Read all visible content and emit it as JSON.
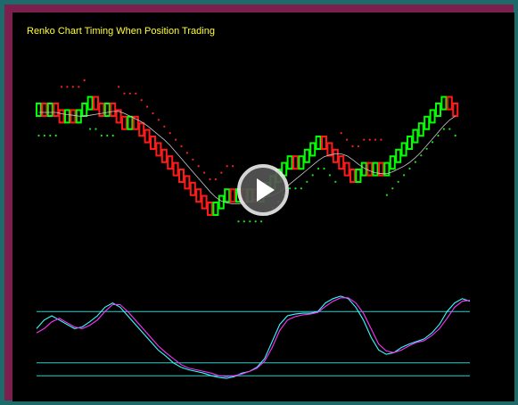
{
  "chart_data": [
    {
      "type": "renko",
      "title": "Renko Chart Timing When Position Trading",
      "bricks": [
        1,
        -1,
        1,
        -1,
        -1,
        1,
        -1,
        1,
        1,
        1,
        -1,
        -1,
        1,
        -1,
        -1,
        -1,
        1,
        -1,
        -1,
        -1,
        -1,
        -1,
        -1,
        -1,
        -1,
        -1,
        -1,
        -1,
        -1,
        -1,
        -1,
        1,
        1,
        1,
        -1,
        1,
        -1,
        1,
        -1,
        1,
        1,
        1,
        1,
        1,
        1,
        -1,
        1,
        1,
        1,
        1,
        -1,
        -1,
        -1,
        -1,
        -1,
        -1,
        1,
        1,
        -1,
        1,
        -1,
        1,
        1,
        1,
        1,
        1,
        1,
        1,
        1,
        1,
        1,
        1,
        -1,
        -1
      ],
      "overlays": [
        {
          "name": "moving average",
          "color": "#cccccc"
        },
        {
          "name": "upper stop dots",
          "color": "#ff2020"
        },
        {
          "name": "lower stop dots",
          "color": "#20e020"
        }
      ],
      "colors": {
        "up": "#00ff00",
        "down": "#ff1a1a",
        "background": "#000000"
      }
    },
    {
      "type": "line",
      "title": "",
      "levels": [
        80,
        20,
        5
      ],
      "ylim": [
        0,
        100
      ],
      "series": [
        {
          "color": "#33ffff",
          "values": [
            60,
            70,
            75,
            70,
            65,
            60,
            62,
            68,
            75,
            85,
            90,
            85,
            75,
            65,
            55,
            45,
            35,
            28,
            20,
            15,
            12,
            10,
            8,
            5,
            3,
            2,
            4,
            8,
            10,
            15,
            25,
            45,
            65,
            75,
            77,
            78,
            78,
            80,
            90,
            95,
            98,
            95,
            85,
            70,
            50,
            35,
            30,
            32,
            38,
            42,
            45,
            48,
            55,
            65,
            80,
            90,
            95,
            92
          ]
        },
        {
          "color": "#ff33ff",
          "values": [
            55,
            60,
            68,
            72,
            67,
            62,
            60,
            64,
            70,
            80,
            88,
            88,
            80,
            70,
            60,
            50,
            40,
            32,
            25,
            18,
            14,
            12,
            10,
            8,
            5,
            4,
            5,
            7,
            10,
            14,
            22,
            38,
            58,
            70,
            74,
            76,
            77,
            79,
            86,
            92,
            96,
            96,
            90,
            78,
            60,
            42,
            34,
            32,
            35,
            40,
            44,
            46,
            52,
            60,
            72,
            85,
            92,
            93
          ]
        }
      ]
    }
  ],
  "play_button": {
    "name": "play"
  }
}
